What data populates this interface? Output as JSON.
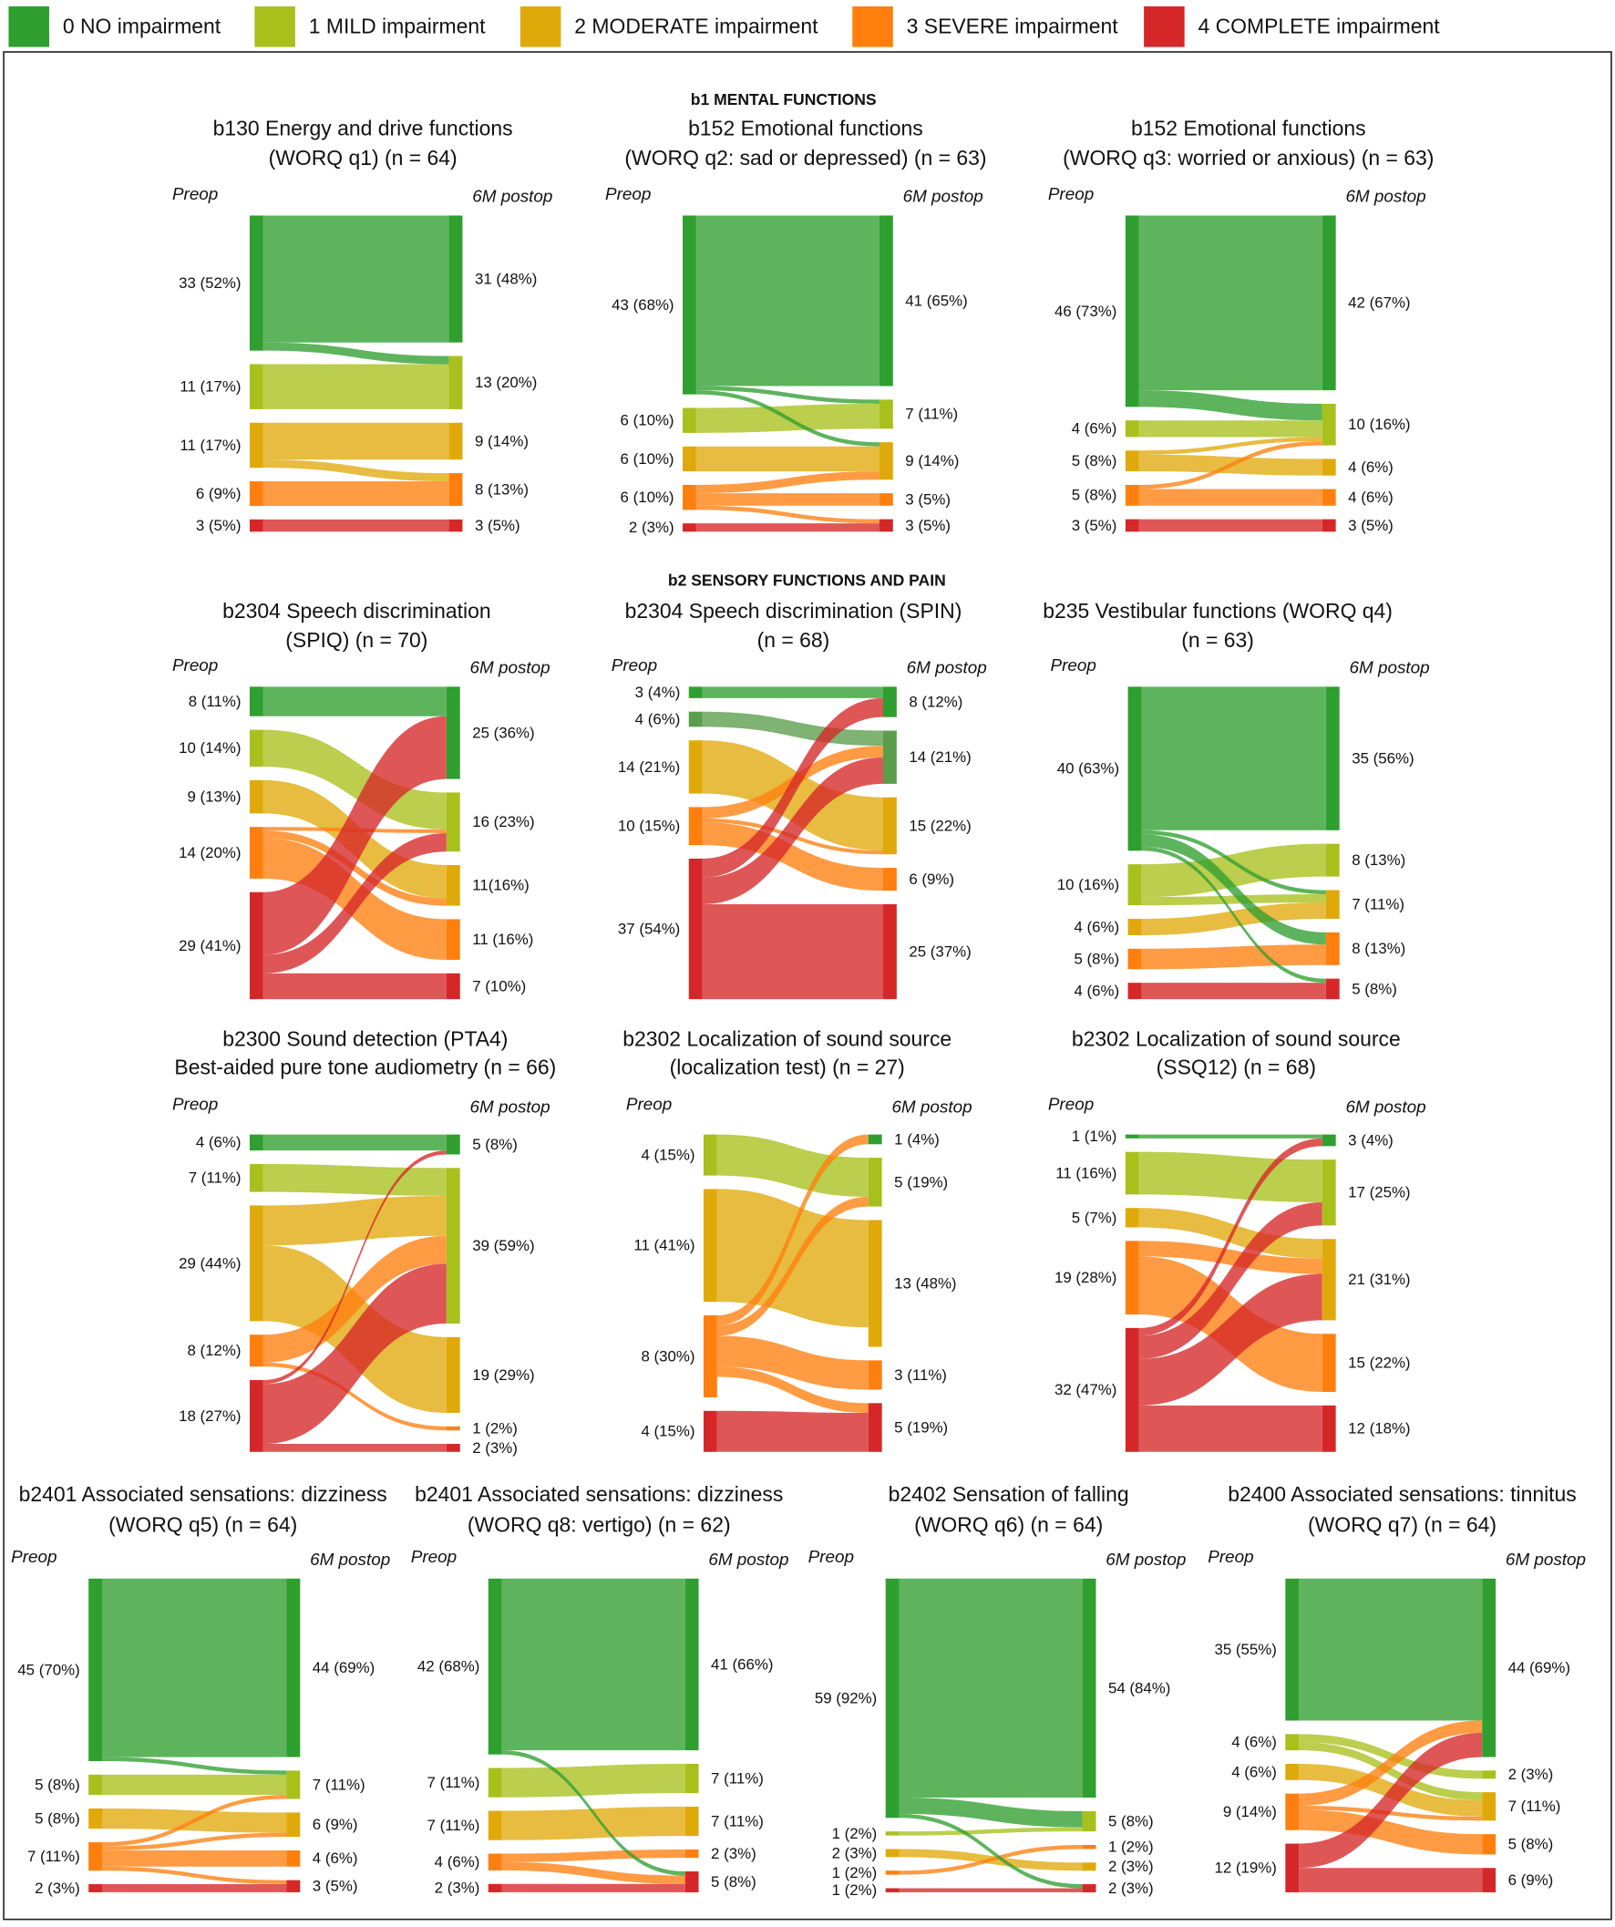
{
  "legend": [
    {
      "label": "0 NO impairment",
      "c": "0"
    },
    {
      "label": "1 MILD impairment",
      "c": "1"
    },
    {
      "label": "2 MODERATE impairment",
      "c": "2"
    },
    {
      "label": "3 SEVERE impairment",
      "c": "3"
    },
    {
      "label": "4 COMPLETE impairment",
      "c": "4"
    }
  ],
  "colors": {
    "0": "#2f9f2f",
    "0b": "#5a9e4b",
    "1": "#a8c01c",
    "2": "#e0a90a",
    "3": "#ff7f0e",
    "4": "#d62728"
  },
  "sections": [
    "b1 MENTAL FUNCTIONS",
    "b2 SENSORY FUNCTIONS AND PAIN"
  ],
  "axis_labels": {
    "pre": "Preop",
    "post": "6M postop"
  },
  "chart_data": {
    "type": "sankey",
    "panels": [
      {
        "title": [
          "b130 Energy and drive functions",
          "(WORQ q1) (n = 64)"
        ],
        "pre": [
          {
            "v": 33,
            "label": "33 (52%)",
            "c": "0"
          },
          {
            "v": 11,
            "label": "11 (17%)",
            "c": "1"
          },
          {
            "v": 11,
            "label": "11 (17%)",
            "c": "2"
          },
          {
            "v": 6,
            "label": "6 (9%)",
            "c": "3"
          },
          {
            "v": 3,
            "label": "3 (5%)",
            "c": "4"
          }
        ],
        "post": [
          {
            "v": 31,
            "label": "31 (48%)",
            "c": "0"
          },
          {
            "v": 13,
            "label": "13 (20%)",
            "c": "1"
          },
          {
            "v": 9,
            "label": "9 (14%)",
            "c": "2"
          },
          {
            "v": 8,
            "label": "8 (13%)",
            "c": "3"
          },
          {
            "v": 3,
            "label": "3 (5%)",
            "c": "4"
          }
        ]
      },
      {
        "title": [
          "b152 Emotional functions",
          "(WORQ q2: sad or depressed) (n = 63)"
        ],
        "pre": [
          {
            "v": 43,
            "label": "43 (68%)",
            "c": "0"
          },
          {
            "v": 6,
            "label": "6 (10%)",
            "c": "1"
          },
          {
            "v": 6,
            "label": "6 (10%)",
            "c": "2"
          },
          {
            "v": 6,
            "label": "6 (10%)",
            "c": "3"
          },
          {
            "v": 2,
            "label": "2 (3%)",
            "c": "4"
          }
        ],
        "post": [
          {
            "v": 41,
            "label": "41 (65%)",
            "c": "0"
          },
          {
            "v": 7,
            "label": "7 (11%)",
            "c": "1"
          },
          {
            "v": 9,
            "label": "9 (14%)",
            "c": "2"
          },
          {
            "v": 3,
            "label": "3 (5%)",
            "c": "3"
          },
          {
            "v": 3,
            "label": "3 (5%)",
            "c": "4"
          }
        ]
      },
      {
        "title": [
          "b152 Emotional functions",
          "(WORQ q3: worried or anxious) (n = 63)"
        ],
        "pre": [
          {
            "v": 46,
            "label": "46 (73%)",
            "c": "0"
          },
          {
            "v": 4,
            "label": "4 (6%)",
            "c": "1"
          },
          {
            "v": 5,
            "label": "5 (8%)",
            "c": "2"
          },
          {
            "v": 5,
            "label": "5 (8%)",
            "c": "3"
          },
          {
            "v": 3,
            "label": "3 (5%)",
            "c": "4"
          }
        ],
        "post": [
          {
            "v": 42,
            "label": "42 (67%)",
            "c": "0"
          },
          {
            "v": 10,
            "label": "10 (16%)",
            "c": "1"
          },
          {
            "v": 4,
            "label": "4 (6%)",
            "c": "2"
          },
          {
            "v": 4,
            "label": "4 (6%)",
            "c": "3"
          },
          {
            "v": 3,
            "label": "3 (5%)",
            "c": "4"
          }
        ]
      },
      {
        "title": [
          "b2304 Speech discrimination",
          "(SPIQ) (n = 70)"
        ],
        "pre": [
          {
            "v": 8,
            "label": "8 (11%)",
            "c": "0"
          },
          {
            "v": 10,
            "label": "10 (14%)",
            "c": "1"
          },
          {
            "v": 9,
            "label": "9 (13%)",
            "c": "2"
          },
          {
            "v": 14,
            "label": "14 (20%)",
            "c": "3"
          },
          {
            "v": 29,
            "label": "29 (41%)",
            "c": "4"
          }
        ],
        "post": [
          {
            "v": 25,
            "label": "25 (36%)",
            "c": "0"
          },
          {
            "v": 16,
            "label": "16 (23%)",
            "c": "1"
          },
          {
            "v": 11,
            "label": "11(16%)",
            "c": "2"
          },
          {
            "v": 11,
            "label": "11 (16%)",
            "c": "3"
          },
          {
            "v": 7,
            "label": "7 (10%)",
            "c": "4"
          }
        ]
      },
      {
        "title": [
          "b2304 Speech discrimination (SPIN)",
          "(n = 68)"
        ],
        "pre": [
          {
            "v": 3,
            "label": "3 (4%)",
            "c": "0"
          },
          {
            "v": 4,
            "label": "4 (6%)",
            "c": "0b"
          },
          {
            "v": 14,
            "label": "14 (21%)",
            "c": "2"
          },
          {
            "v": 10,
            "label": "10 (15%)",
            "c": "3"
          },
          {
            "v": 37,
            "label": "37 (54%)",
            "c": "4"
          }
        ],
        "post": [
          {
            "v": 8,
            "label": "8 (12%)",
            "c": "0"
          },
          {
            "v": 14,
            "label": "14 (21%)",
            "c": "0b"
          },
          {
            "v": 15,
            "label": "15 (22%)",
            "c": "2"
          },
          {
            "v": 6,
            "label": "6 (9%)",
            "c": "3"
          },
          {
            "v": 25,
            "label": "25 (37%)",
            "c": "4"
          }
        ]
      },
      {
        "title": [
          "b235 Vestibular functions (WORQ q4)",
          "(n = 63)"
        ],
        "pre": [
          {
            "v": 40,
            "label": "40 (63%)",
            "c": "0"
          },
          {
            "v": 10,
            "label": "10 (16%)",
            "c": "1"
          },
          {
            "v": 4,
            "label": "4 (6%)",
            "c": "2"
          },
          {
            "v": 5,
            "label": "5 (8%)",
            "c": "3"
          },
          {
            "v": 4,
            "label": "4 (6%)",
            "c": "4"
          }
        ],
        "post": [
          {
            "v": 35,
            "label": "35 (56%)",
            "c": "0"
          },
          {
            "v": 8,
            "label": "8 (13%)",
            "c": "1"
          },
          {
            "v": 7,
            "label": "7 (11%)",
            "c": "2"
          },
          {
            "v": 8,
            "label": "8 (13%)",
            "c": "3"
          },
          {
            "v": 5,
            "label": "5 (8%)",
            "c": "4"
          }
        ]
      },
      {
        "title": [
          "b2300 Sound detection (PTA4)",
          "Best-aided pure tone audiometry (n = 66)"
        ],
        "pre": [
          {
            "v": 4,
            "label": "4 (6%)",
            "c": "0"
          },
          {
            "v": 7,
            "label": "7 (11%)",
            "c": "1"
          },
          {
            "v": 29,
            "label": "29 (44%)",
            "c": "2"
          },
          {
            "v": 8,
            "label": "8 (12%)",
            "c": "3"
          },
          {
            "v": 18,
            "label": "18 (27%)",
            "c": "4"
          }
        ],
        "post": [
          {
            "v": 5,
            "label": "5 (8%)",
            "c": "0"
          },
          {
            "v": 39,
            "label": "39 (59%)",
            "c": "1"
          },
          {
            "v": 19,
            "label": "19 (29%)",
            "c": "2"
          },
          {
            "v": 1,
            "label": "1 (2%)",
            "c": "3"
          },
          {
            "v": 2,
            "label": "2 (3%)",
            "c": "4"
          }
        ]
      },
      {
        "title": [
          "b2302 Localization of sound source",
          "(localization test) (n = 27)"
        ],
        "pre": [
          {
            "v": 4,
            "label": "4 (15%)",
            "c": "1"
          },
          {
            "v": 11,
            "label": "11 (41%)",
            "c": "2"
          },
          {
            "v": 8,
            "label": "8 (30%)",
            "c": "3"
          },
          {
            "v": 4,
            "label": "4 (15%)",
            "c": "4"
          }
        ],
        "post": [
          {
            "v": 1,
            "label": "1 (4%)",
            "c": "0"
          },
          {
            "v": 5,
            "label": "5 (19%)",
            "c": "1"
          },
          {
            "v": 13,
            "label": "13 (48%)",
            "c": "2"
          },
          {
            "v": 3,
            "label": "3 (11%)",
            "c": "3"
          },
          {
            "v": 5,
            "label": "5 (19%)",
            "c": "4"
          }
        ]
      },
      {
        "title": [
          "b2302 Localization of sound source",
          "(SSQ12) (n = 68)"
        ],
        "pre": [
          {
            "v": 1,
            "label": "1 (1%)",
            "c": "0"
          },
          {
            "v": 11,
            "label": "11 (16%)",
            "c": "1"
          },
          {
            "v": 5,
            "label": "5 (7%)",
            "c": "2"
          },
          {
            "v": 19,
            "label": "19 (28%)",
            "c": "3"
          },
          {
            "v": 32,
            "label": "32 (47%)",
            "c": "4"
          }
        ],
        "post": [
          {
            "v": 3,
            "label": "3 (4%)",
            "c": "0"
          },
          {
            "v": 17,
            "label": "17 (25%)",
            "c": "1"
          },
          {
            "v": 21,
            "label": "21 (31%)",
            "c": "2"
          },
          {
            "v": 15,
            "label": "15 (22%)",
            "c": "3"
          },
          {
            "v": 12,
            "label": "12 (18%)",
            "c": "4"
          }
        ]
      },
      {
        "title": [
          "b2401 Associated sensations: dizziness",
          "(WORQ q5) (n = 64)"
        ],
        "pre": [
          {
            "v": 45,
            "label": "45 (70%)",
            "c": "0"
          },
          {
            "v": 5,
            "label": "5 (8%)",
            "c": "1"
          },
          {
            "v": 5,
            "label": "5 (8%)",
            "c": "2"
          },
          {
            "v": 7,
            "label": "7 (11%)",
            "c": "3"
          },
          {
            "v": 2,
            "label": "2 (3%)",
            "c": "4"
          }
        ],
        "post": [
          {
            "v": 44,
            "label": "44 (69%)",
            "c": "0"
          },
          {
            "v": 7,
            "label": "7 (11%)",
            "c": "1"
          },
          {
            "v": 6,
            "label": "6 (9%)",
            "c": "2"
          },
          {
            "v": 4,
            "label": "4 (6%)",
            "c": "3"
          },
          {
            "v": 3,
            "label": "3 (5%)",
            "c": "4"
          }
        ]
      },
      {
        "title": [
          "b2401 Associated sensations: dizziness",
          "(WORQ q8: vertigo) (n = 62)"
        ],
        "pre": [
          {
            "v": 42,
            "label": "42 (68%)",
            "c": "0"
          },
          {
            "v": 7,
            "label": "7 (11%)",
            "c": "1"
          },
          {
            "v": 7,
            "label": "7 (11%)",
            "c": "2"
          },
          {
            "v": 4,
            "label": "4 (6%)",
            "c": "3"
          },
          {
            "v": 2,
            "label": "2 (3%)",
            "c": "4"
          }
        ],
        "post": [
          {
            "v": 41,
            "label": "41 (66%)",
            "c": "0"
          },
          {
            "v": 7,
            "label": "7 (11%)",
            "c": "1"
          },
          {
            "v": 7,
            "label": "7 (11%)",
            "c": "2"
          },
          {
            "v": 2,
            "label": "2 (3%)",
            "c": "3"
          },
          {
            "v": 5,
            "label": "5 (8%)",
            "c": "4"
          }
        ]
      },
      {
        "title": [
          "b2402 Sensation of falling",
          "(WORQ q6) (n = 64)"
        ],
        "pre": [
          {
            "v": 59,
            "label": "59 (92%)",
            "c": "0"
          },
          {
            "v": 1,
            "label": "1 (2%)",
            "c": "1"
          },
          {
            "v": 2,
            "label": "2 (3%)",
            "c": "2"
          },
          {
            "v": 1,
            "label": "1 (2%)",
            "c": "3"
          },
          {
            "v": 1,
            "label": "1 (2%)",
            "c": "4"
          }
        ],
        "post": [
          {
            "v": 54,
            "label": "54 (84%)",
            "c": "0"
          },
          {
            "v": 5,
            "label": "5 (8%)",
            "c": "1"
          },
          {
            "v": 1,
            "label": "1 (2%)",
            "c": "3"
          },
          {
            "v": 2,
            "label": "2 (3%)",
            "c": "2"
          },
          {
            "v": 2,
            "label": "2 (3%)",
            "c": "4"
          }
        ]
      },
      {
        "title": [
          "b2400 Associated sensations: tinnitus",
          "(WORQ q7) (n = 64)"
        ],
        "pre": [
          {
            "v": 35,
            "label": "35 (55%)",
            "c": "0"
          },
          {
            "v": 4,
            "label": "4 (6%)",
            "c": "1"
          },
          {
            "v": 4,
            "label": "4 (6%)",
            "c": "2"
          },
          {
            "v": 9,
            "label": "9 (14%)",
            "c": "3"
          },
          {
            "v": 12,
            "label": "12 (19%)",
            "c": "4"
          }
        ],
        "post": [
          {
            "v": 44,
            "label": "44 (69%)",
            "c": "0"
          },
          {
            "v": 2,
            "label": "2 (3%)",
            "c": "1"
          },
          {
            "v": 7,
            "label": "7 (11%)",
            "c": "2"
          },
          {
            "v": 5,
            "label": "5 (8%)",
            "c": "3"
          },
          {
            "v": 6,
            "label": "6 (9%)",
            "c": "4"
          }
        ]
      }
    ]
  }
}
